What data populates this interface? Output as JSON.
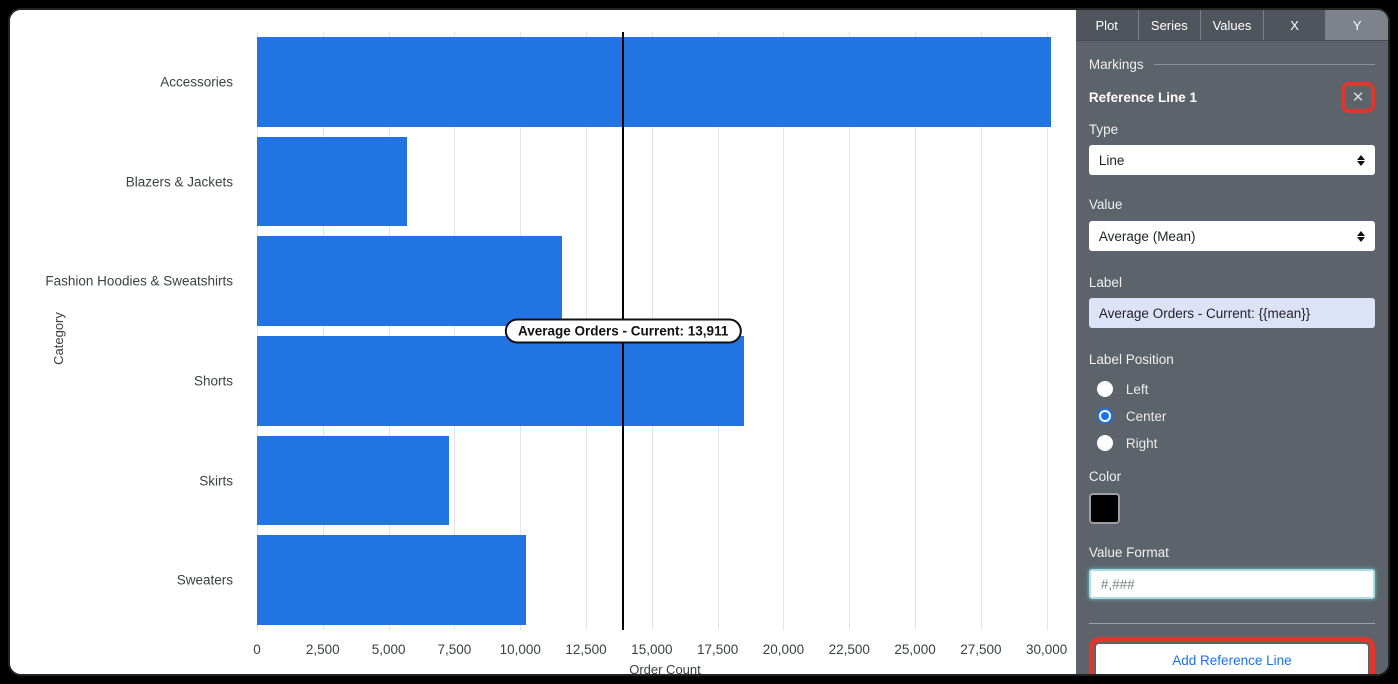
{
  "chart_data": {
    "type": "bar",
    "orientation": "horizontal",
    "categories": [
      "Accessories",
      "Blazers & Jackets",
      "Fashion Hoodies & Sweatshirts",
      "Shorts",
      "Skirts",
      "Sweaters"
    ],
    "values": [
      30150,
      5690,
      11600,
      18500,
      7300,
      10226
    ],
    "xlabel": "Order Count",
    "ylabel": "Category",
    "xlim": [
      0,
      31000
    ],
    "xticks": [
      0,
      2500,
      5000,
      7500,
      10000,
      12500,
      15000,
      17500,
      20000,
      22500,
      25000,
      27500,
      30000
    ],
    "xtick_labels": [
      "0",
      "2,500",
      "5,000",
      "7,500",
      "10,000",
      "12,500",
      "15,000",
      "17,500",
      "20,000",
      "22,500",
      "25,000",
      "27,500",
      "30,000"
    ],
    "grid": true,
    "bar_color": "#2174e2",
    "reference_line": {
      "value": 13911,
      "label": "Average Orders - Current: 13,911",
      "color": "#000000",
      "label_position": "center"
    }
  },
  "panel": {
    "tabs": [
      {
        "label": "Plot",
        "active": false
      },
      {
        "label": "Series",
        "active": false
      },
      {
        "label": "Values",
        "active": false
      },
      {
        "label": "X",
        "active": false
      },
      {
        "label": "Y",
        "active": true
      }
    ],
    "markings": {
      "section_label": "Markings",
      "reference_line_title": "Reference Line 1",
      "close_icon_glyph": "✕",
      "type_label": "Type",
      "type_value": "Line",
      "value_label": "Value",
      "value_value": "Average (Mean)",
      "label_label": "Label",
      "label_value": "Average Orders - Current: {{mean}}",
      "label_position_label": "Label Position",
      "label_position_options": [
        "Left",
        "Center",
        "Right"
      ],
      "label_position_selected": "Center",
      "color_label": "Color",
      "color_value": "#000000",
      "value_format_label": "Value Format",
      "value_format_value": "#,###",
      "add_button_label": "Add Reference Line"
    }
  },
  "colors": {
    "bar": "#2174e2",
    "panel_background": "#5d636b",
    "tab_active_background": "#7d838c",
    "accent_blue": "#1a73e8",
    "annotation_highlight_red": "#df372b",
    "reference_line": "#000000"
  }
}
